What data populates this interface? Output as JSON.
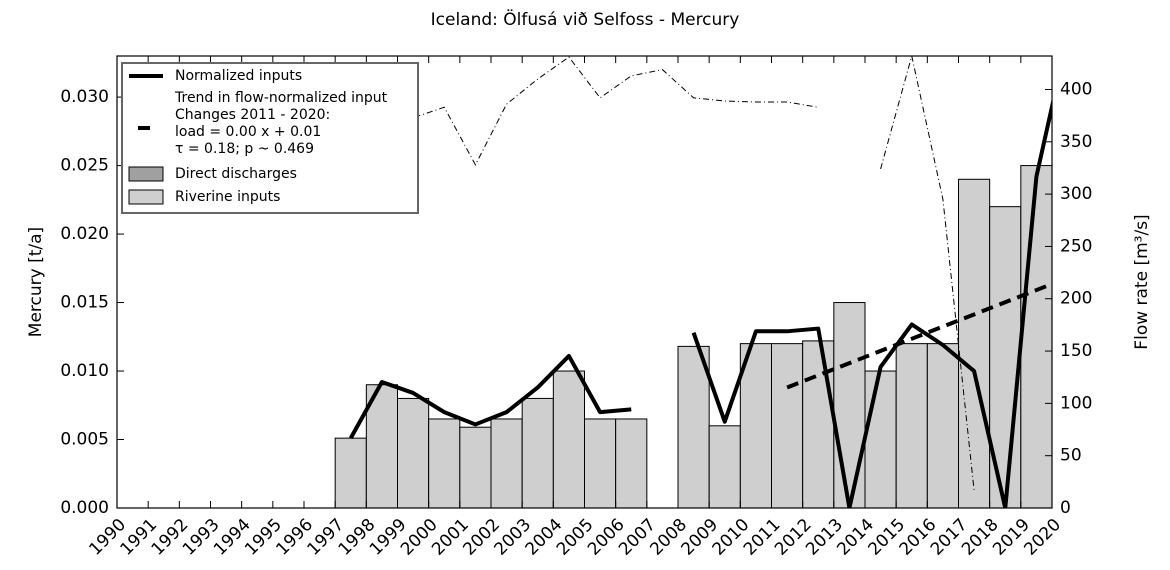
{
  "chart_data": {
    "type": "bar",
    "title": "Iceland: Ölfusá við Selfoss - Mercury",
    "ylabel": "Mercury [t/a]",
    "y2label": "Flow rate [m³/s]",
    "x": [
      1997,
      1998,
      1999,
      2000,
      2001,
      2002,
      2003,
      2004,
      2005,
      2006,
      2007,
      2008,
      2009,
      2010,
      2011,
      2012,
      2013,
      2014,
      2015,
      2016,
      2017,
      2018,
      2019,
      2020
    ],
    "xlim": [
      1990,
      2020
    ],
    "xticks": [
      1990,
      1991,
      1992,
      1993,
      1994,
      1995,
      1996,
      1997,
      1998,
      1999,
      2000,
      2001,
      2002,
      2003,
      2004,
      2005,
      2006,
      2007,
      2008,
      2009,
      2010,
      2011,
      2012,
      2013,
      2014,
      2015,
      2016,
      2017,
      2018,
      2019,
      2020
    ],
    "ylim": [
      0,
      0.033
    ],
    "yticks": [
      {
        "value": 0,
        "label": "0.000"
      },
      {
        "value": 0.005,
        "label": "0.005"
      },
      {
        "value": 0.01,
        "label": "0.010"
      },
      {
        "value": 0.015,
        "label": "0.015"
      },
      {
        "value": 0.02,
        "label": "0.020"
      },
      {
        "value": 0.025,
        "label": "0.025"
      },
      {
        "value": 0.03,
        "label": "0.030"
      }
    ],
    "y2lim": [
      0,
      432
    ],
    "y2ticks": [
      0,
      50,
      100,
      150,
      200,
      250,
      300,
      350,
      400
    ],
    "series": [
      {
        "name": "Direct discharges",
        "type": "bar",
        "color": "#a0a0a0",
        "values": [
          0,
          0,
          0,
          0,
          0,
          0,
          0,
          0,
          0,
          0,
          null,
          0,
          0,
          0,
          0,
          0,
          0,
          0,
          0,
          0,
          0,
          0,
          0,
          null
        ]
      },
      {
        "name": "Riverine inputs",
        "type": "bar",
        "color": "#cfcfcf",
        "values": [
          0.0051,
          0.009,
          0.008,
          0.0065,
          0.0059,
          0.0065,
          0.008,
          0.01,
          0.0065,
          0.0065,
          null,
          0.0118,
          0.006,
          0.012,
          0.012,
          0.0122,
          0.015,
          0.01,
          0.012,
          0.012,
          0.024,
          0.022,
          0.025,
          null
        ]
      },
      {
        "name": "Normalized inputs",
        "type": "line",
        "color": "#000000",
        "values": [
          0.0051,
          0.0092,
          0.0084,
          0.007,
          0.0061,
          0.007,
          0.0088,
          0.0111,
          0.007,
          0.0072,
          null,
          0.0128,
          0.0063,
          0.0129,
          0.0129,
          0.0131,
          0,
          0.0103,
          0.0134,
          0.0119,
          0.01,
          0,
          0.0242,
          0.0344
        ]
      },
      {
        "type": "line",
        "axis": "y2",
        "color": "#000000",
        "dash": "dashdot",
        "values": [
          390,
          328,
          373,
          383,
          328,
          386,
          410,
          431,
          392,
          413,
          419,
          392,
          389,
          388,
          388,
          383,
          null,
          324,
          432,
          295,
          17,
          null,
          null,
          null
        ]
      }
    ],
    "trend": {
      "name": "Trend in flow-normalized input",
      "notes": [
        "Changes 2011 - 2020:",
        "load =  0.00 x +  0.01",
        "τ =  0.18; p ~ 0.469"
      ],
      "color": "#000000",
      "x": [
        2011,
        2020
      ],
      "values": [
        0.0088,
        0.0168
      ]
    }
  }
}
